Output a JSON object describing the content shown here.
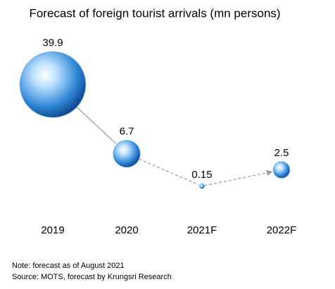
{
  "chart_data": {
    "type": "bubble",
    "title": "Forecast of foreign tourist arrivals (mn persons)",
    "categories": [
      "2019",
      "2020",
      "2021F",
      "2022F"
    ],
    "values": [
      39.9,
      6.7,
      0.15,
      2.5
    ],
    "color": "#2f86d6",
    "notes": [
      "Note: forecast as of August 2021",
      "Source: MOTS, forecast by Krungsri Research"
    ]
  }
}
